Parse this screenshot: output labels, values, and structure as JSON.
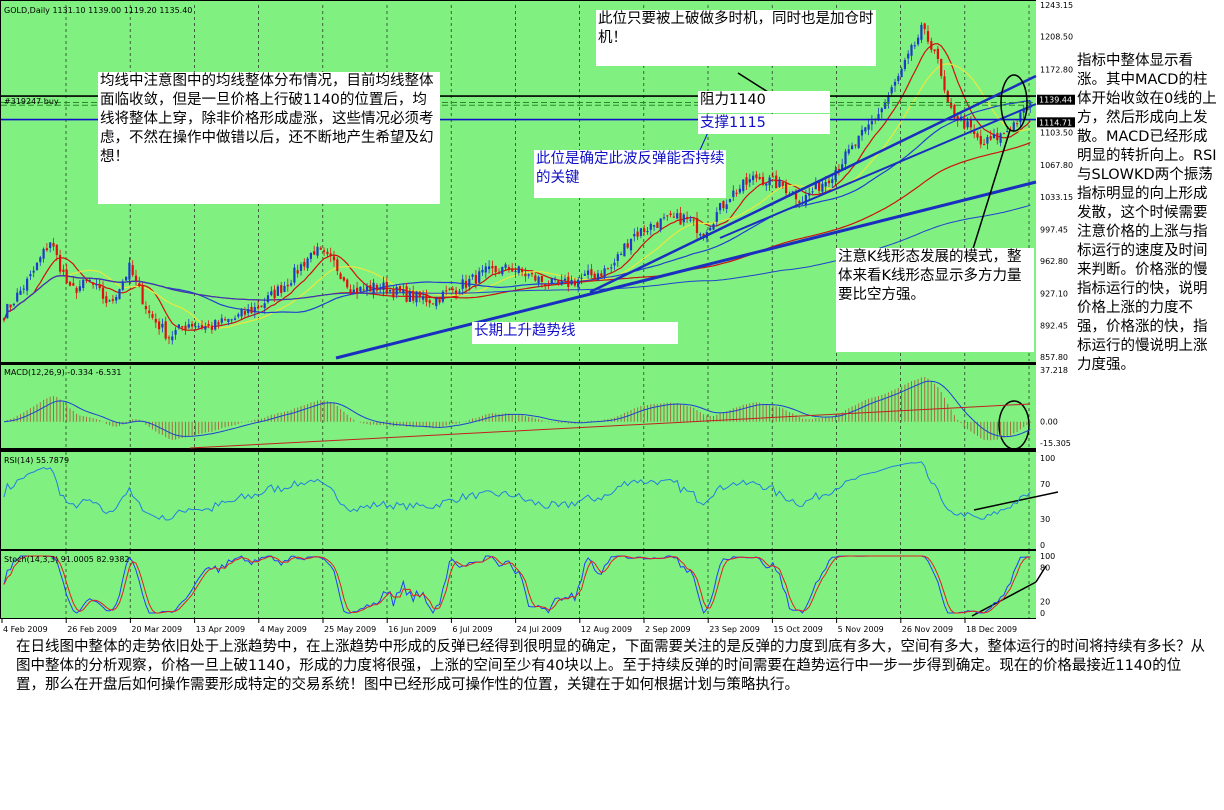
{
  "chart_data": {
    "type": "candlestick",
    "symbol_header": "GOLD,Daily  1131.10 1139.00 1119.20 1135.40",
    "order_label": "#319247 buy",
    "price_ticks": [
      "1243.15",
      "1208.50",
      "1172.80",
      "1139.44",
      "1114.71",
      "1103.50",
      "1067.80",
      "1033.15",
      "997.45",
      "962.80",
      "927.10",
      "892.45",
      "857.80"
    ],
    "price_tick_values": [
      1243.15,
      1208.5,
      1172.8,
      1139.44,
      1114.71,
      1103.5,
      1067.8,
      1033.15,
      997.45,
      962.8,
      927.1,
      892.45,
      857.8
    ],
    "price_range": [
      857.8,
      1243.15
    ],
    "resistance_value": 1139.44,
    "support_value": 1114.71,
    "date_labels": [
      "4 Feb 2009",
      "26 Feb 2009",
      "20 Mar 2009",
      "13 Apr 2009",
      "4 May 2009",
      "25 May 2009",
      "16 Jun 2009",
      "6 Jul 2009",
      "24 Jul 2009",
      "12 Aug 2009",
      "2 Sep 2009",
      "23 Sep 2009",
      "15 Oct 2009",
      "5 Nov 2009",
      "26 Nov 2009",
      "18 Dec 2009"
    ],
    "close_keypoints": [
      {
        "day": 0,
        "v": 905
      },
      {
        "day": 8,
        "v": 945
      },
      {
        "day": 14,
        "v": 985
      },
      {
        "day": 20,
        "v": 930
      },
      {
        "day": 26,
        "v": 940
      },
      {
        "day": 32,
        "v": 915
      },
      {
        "day": 38,
        "v": 955
      },
      {
        "day": 44,
        "v": 905
      },
      {
        "day": 50,
        "v": 880
      },
      {
        "day": 56,
        "v": 895
      },
      {
        "day": 62,
        "v": 890
      },
      {
        "day": 70,
        "v": 900
      },
      {
        "day": 78,
        "v": 915
      },
      {
        "day": 86,
        "v": 940
      },
      {
        "day": 94,
        "v": 975
      },
      {
        "day": 100,
        "v": 960
      },
      {
        "day": 106,
        "v": 930
      },
      {
        "day": 114,
        "v": 935
      },
      {
        "day": 122,
        "v": 925
      },
      {
        "day": 130,
        "v": 920
      },
      {
        "day": 138,
        "v": 935
      },
      {
        "day": 146,
        "v": 950
      },
      {
        "day": 154,
        "v": 955
      },
      {
        "day": 160,
        "v": 945
      },
      {
        "day": 168,
        "v": 935
      },
      {
        "day": 176,
        "v": 945
      },
      {
        "day": 184,
        "v": 955
      },
      {
        "day": 190,
        "v": 990
      },
      {
        "day": 198,
        "v": 1005
      },
      {
        "day": 206,
        "v": 1010
      },
      {
        "day": 212,
        "v": 995
      },
      {
        "day": 220,
        "v": 1035
      },
      {
        "day": 228,
        "v": 1055
      },
      {
        "day": 236,
        "v": 1045
      },
      {
        "day": 242,
        "v": 1030
      },
      {
        "day": 250,
        "v": 1055
      },
      {
        "day": 258,
        "v": 1090
      },
      {
        "day": 266,
        "v": 1130
      },
      {
        "day": 272,
        "v": 1170
      },
      {
        "day": 278,
        "v": 1215
      },
      {
        "day": 282,
        "v": 1195
      },
      {
        "day": 286,
        "v": 1130
      },
      {
        "day": 292,
        "v": 1110
      },
      {
        "day": 296,
        "v": 1090
      },
      {
        "day": 302,
        "v": 1100
      },
      {
        "day": 308,
        "v": 1120
      },
      {
        "day": 311,
        "v": 1135
      }
    ],
    "macd": {
      "label": "MACD(12,26,9) -0.334 -6.531",
      "ticks": [
        "37.218",
        "0.00",
        "-15.305"
      ],
      "tick_values": [
        37.218,
        0,
        -15.305
      ],
      "range": [
        -15.305,
        37.218
      ]
    },
    "rsi": {
      "label": "RSI(14) 55.7879",
      "ticks": [
        "100",
        "70",
        "30",
        "0"
      ],
      "tick_values": [
        100,
        70,
        30,
        0
      ],
      "range": [
        0,
        100
      ]
    },
    "stoch": {
      "label": "Stoch(14,3,3) 91.0005 82.9382",
      "ticks": [
        "100",
        "80",
        "20",
        "0"
      ],
      "tick_values": [
        100,
        80,
        20,
        0
      ],
      "range": [
        0,
        100
      ]
    }
  },
  "notes": {
    "ma_note": "均线中注意图中的均线整体分布情况，目前均线整体面临收敛，但是一旦价格上行破1140的位置后，均线将整体上穿，除非价格形成虚涨，这些情况必须考虑，不然在操作中做错以后，还不断地产生希望及幻想！",
    "top_note": "此位只要被上破做多时机，同时也是加仓时机！",
    "resistance_label": "阻力1140",
    "support_label": "支撑1115",
    "key_note": "此位是确定此波反弹能否持续的关键",
    "pattern_note": "注意K线形态发展的模式，整体来看K线形态显示多方力量要比空方强。",
    "trend_label": "长期上升趋势线",
    "side_note": "指标中整体显示看涨。其中MACD的柱体开始收敛在0线的上方，然后形成向上发散。MACD已经形成明显的转折向上。RSI与SLOWKD两个振荡指标明显的向上形成发散，这个时候需要注意价格的上涨与指标运行的速度及时间来判断。价格涨的慢指标运行的快，说明价格上涨的力度不强，价格涨的快，指标运行的慢说明上涨力度强。",
    "bottom_note": "在日线图中整体的走势依旧处于上涨趋势中，在上涨趋势中形成的反弹已经得到很明显的确定，下面需要关注的是反弹的力度到底有多大，空间有多大，整体运行的时间将持续有多长？从图中整体的分析观察，价格一旦上破1140，形成的力度将很强，上涨的空间至少有40块以上。至于持续反弹的时间需要在趋势运行中一步一步得到确定。现在的价格最接近1140的位置，那么在开盘后如何操作需要形成特定的交易系统！图中已经形成可操作性的位置，关键在于如何根据计划与策略执行。"
  },
  "colors": {
    "panel_bg": "#80f080",
    "bull": "#1a3cc8",
    "bear": "#e01010",
    "resistance": "#000000",
    "support": "#1010c8",
    "trend": "#1a2ec0",
    "ma_red": "#d01010",
    "ma_yellow": "#e8e840",
    "ma_blue": "#2040d0",
    "macd_hist": "#a07040",
    "signal": "#c02020",
    "rsi": "#2080e0",
    "stoch_k": "#2040ff",
    "stoch_d": "#e02020"
  }
}
